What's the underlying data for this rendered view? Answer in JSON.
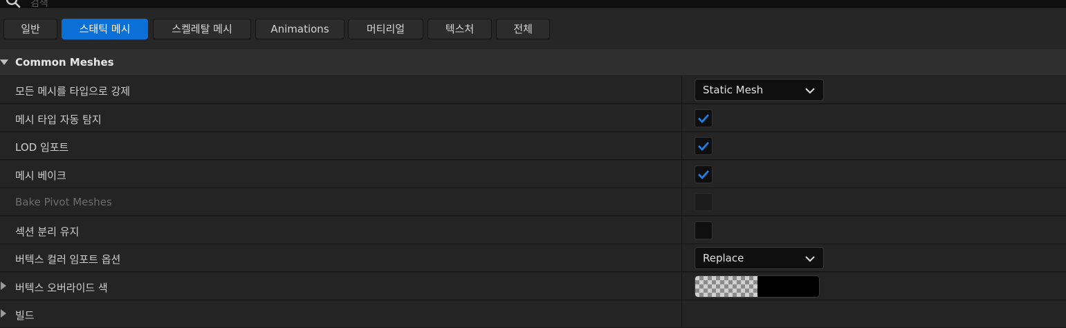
{
  "search": {
    "placeholder": "검색"
  },
  "filters": [
    {
      "label": "일반",
      "active": false
    },
    {
      "label": "스태틱 메시",
      "active": true
    },
    {
      "label": "스켈레탈 메시",
      "active": false
    },
    {
      "label": "Animations",
      "active": false
    },
    {
      "label": "머티리얼",
      "active": false
    },
    {
      "label": "텍스처",
      "active": false
    },
    {
      "label": "전체",
      "active": false
    }
  ],
  "category": {
    "title": "Common Meshes",
    "expanded": true
  },
  "properties": {
    "force_mesh_type": {
      "label": "모든 메시를 타입으로 강제",
      "value": "Static Mesh"
    },
    "auto_detect": {
      "label": "메시 타입 자동 탐지",
      "checked": true
    },
    "import_lods": {
      "label": "LOD 임포트",
      "checked": true
    },
    "bake_meshes": {
      "label": "메시 베이크",
      "checked": true
    },
    "bake_pivot": {
      "label": "Bake Pivot Meshes",
      "checked": false,
      "enabled": false
    },
    "keep_sections": {
      "label": "섹션 분리 유지",
      "checked": false
    },
    "vertex_color_option": {
      "label": "버텍스 컬러 임포트 옵션",
      "value": "Replace"
    },
    "vertex_override_color": {
      "label": "버텍스 오버라이드 색",
      "color": "#000000"
    },
    "build": {
      "label": "빌드"
    }
  },
  "colors": {
    "accent": "#0a6fd6",
    "background": "#1a1a1a",
    "row": "#242424",
    "check": "#1a7fe6"
  }
}
